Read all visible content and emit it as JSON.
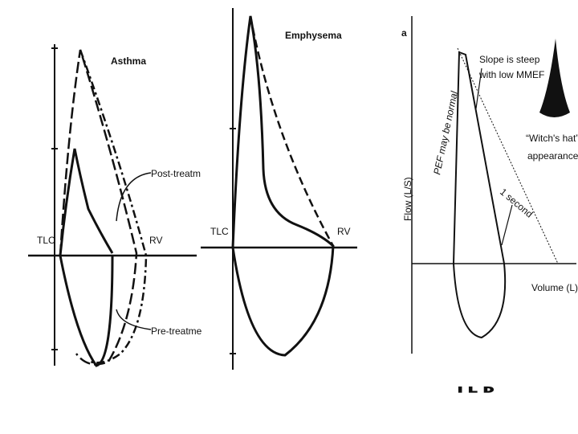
{
  "panels": [
    {
      "title": "Asthma",
      "tlc": "TLC",
      "rv": "RV",
      "post": "Post-treatm",
      "pre": "Pre-treatme"
    },
    {
      "title": "Emphysema",
      "tlc": "TLC",
      "rv": "RV"
    },
    {
      "panel_letter": "a",
      "pef": "PEF may be normal",
      "slope": [
        "Slope is steep",
        "with low MMEF"
      ],
      "hat": [
        "“Witch's hat”",
        "appearance"
      ],
      "y_label": "Flow (L/S)",
      "x_label": "Volume (L)",
      "time": "1 second",
      "caption": "ILD"
    }
  ]
}
